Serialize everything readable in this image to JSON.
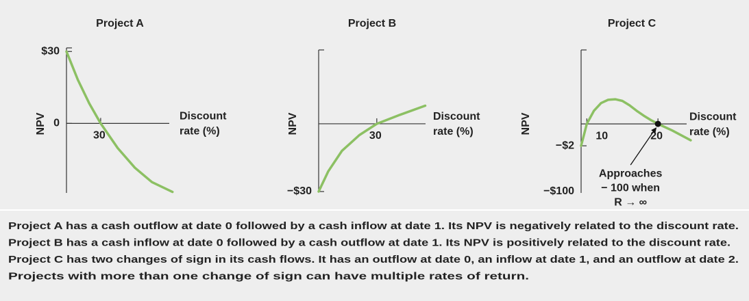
{
  "chart_data": [
    {
      "type": "line",
      "title": "Project A",
      "ylabel": "NPV",
      "xlabel": [
        "Discount",
        "rate (%)"
      ],
      "x": [
        0,
        10,
        20,
        30,
        45,
        60,
        75,
        93
      ],
      "values": [
        30,
        18.2,
        8.3,
        0,
        -10.3,
        -18.5,
        -24.5,
        -28.6
      ],
      "color": "#8cc063",
      "xlim": [
        0,
        95
      ],
      "ylim": [
        -29,
        31.5
      ],
      "xticks": [
        30
      ],
      "yticks": [
        {
          "value": 30,
          "label": "$30"
        },
        0
      ]
    },
    {
      "type": "line",
      "title": "Project B",
      "ylabel": "NPV",
      "xlabel": [
        "Discount",
        "rate (%)"
      ],
      "x": [
        0,
        5,
        12,
        21,
        30,
        42,
        55
      ],
      "values": [
        -30,
        -21,
        -12,
        -5,
        0,
        4,
        8
      ],
      "color": "#8cc063",
      "xlim": [
        0,
        58
      ],
      "ylim": [
        -30,
        32.7
      ],
      "xticks": [
        30
      ],
      "yticks": [
        {
          "value": -30,
          "label": "−$30"
        }
      ]
    },
    {
      "type": "line",
      "title": "Project C",
      "ylabel": "NPV",
      "xlabel": [
        "Discount",
        "rate (%)"
      ],
      "x": [
        9.2,
        9.6,
        10,
        11,
        12,
        13,
        14,
        15,
        16,
        17,
        18,
        19,
        20,
        22,
        24.6
      ],
      "values": [
        -2,
        -1,
        0,
        1.2,
        1.9,
        2.2,
        2.25,
        2.1,
        1.7,
        1.2,
        0.75,
        0.35,
        0,
        -0.6,
        -1.5
      ],
      "color": "#8cc063",
      "xlim": [
        9.2,
        24.8
      ],
      "ylim": [
        -6.3,
        6.75
      ],
      "xticks": [
        10,
        20
      ],
      "yticks": [
        {
          "value": -2,
          "label": "−$2"
        }
      ],
      "y_bottom_label": "−$100",
      "marker": {
        "x": 20,
        "y": 0
      },
      "annotation": [
        "Approaches",
        "− 100 when",
        "R → ∞"
      ]
    }
  ],
  "caption": [
    "Project A has a cash outflow at date 0 followed by a cash inflow at date 1. Its NPV is negatively related to the discount rate.",
    "Project B has a cash inflow at date 0 followed by a cash outflow at date 1. Its NPV is positively related to the discount rate.",
    "Project C has two changes of sign in its cash flows. It has an outflow at date 0, an inflow at date 1, and an outflow at date 2.",
    "Projects with more than one change of sign can have multiple rates of return."
  ]
}
